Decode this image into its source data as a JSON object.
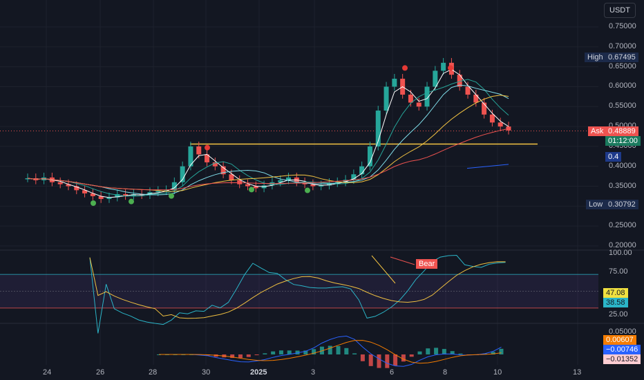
{
  "currency": "USDT",
  "price_axis": {
    "ticks": [
      {
        "label": "0.75000",
        "value": 0.75
      },
      {
        "label": "0.70000",
        "value": 0.7
      },
      {
        "label": "0.65000",
        "value": 0.65
      },
      {
        "label": "0.60000",
        "value": 0.6
      },
      {
        "label": "0.55000",
        "value": 0.55
      },
      {
        "label": "0.50000",
        "value": 0.5
      },
      {
        "label": "0.45000",
        "value": 0.45
      },
      {
        "label": "0.40000",
        "value": 0.4
      },
      {
        "label": "0.35000",
        "value": 0.35
      },
      {
        "label": "0.30000",
        "value": 0.3
      },
      {
        "label": "0.25000",
        "value": 0.25
      },
      {
        "label": "0.20000",
        "value": 0.2
      }
    ]
  },
  "markers": {
    "high_label": "High",
    "high_value": "0.67495",
    "ask_label": "Ask",
    "ask_value": "0.48889",
    "countdown": "01:12:00",
    "level_value": "0.4",
    "low_label": "Low",
    "low_value": "0.30792"
  },
  "rsi": {
    "ticks": [
      "100.00",
      "75.00",
      "25.00"
    ],
    "value_yellow": "47.08",
    "value_cyan": "38.58",
    "bear_label": "Bear"
  },
  "macd": {
    "tick": "0.05000",
    "value_orange": "0.00607",
    "value_blue": "−0.00746",
    "value_hist": "−0.01352"
  },
  "dates": [
    "24",
    "26",
    "28",
    "30",
    "2025",
    "3",
    "6",
    "8",
    "10",
    "13"
  ],
  "colors": {
    "background": "#131722",
    "bull": "#26a69a",
    "bear": "#ef5350",
    "rsi_line": "#2bb5c8",
    "rsi_signal": "#f0c040",
    "support": "#f5c542"
  },
  "chart_data": {
    "type": "candlestick",
    "price_range": [
      0.19,
      0.78
    ],
    "support_level": 0.456,
    "high": 0.67495,
    "low": 0.30792,
    "last": 0.48889,
    "candles_close": [
      0.37,
      0.365,
      0.372,
      0.36,
      0.355,
      0.35,
      0.34,
      0.332,
      0.325,
      0.318,
      0.322,
      0.33,
      0.326,
      0.33,
      0.328,
      0.335,
      0.338,
      0.34,
      0.36,
      0.4,
      0.45,
      0.43,
      0.41,
      0.4,
      0.38,
      0.365,
      0.355,
      0.35,
      0.345,
      0.352,
      0.36,
      0.365,
      0.372,
      0.36,
      0.355,
      0.35,
      0.352,
      0.358,
      0.36,
      0.366,
      0.38,
      0.4,
      0.45,
      0.54,
      0.6,
      0.62,
      0.58,
      0.56,
      0.55,
      0.6,
      0.64,
      0.66,
      0.63,
      0.6,
      0.58,
      0.56,
      0.53,
      0.51,
      0.5,
      0.49
    ],
    "rsi_range": [
      0,
      100
    ],
    "rsi_overbought": 70,
    "rsi_oversold": 30
  }
}
